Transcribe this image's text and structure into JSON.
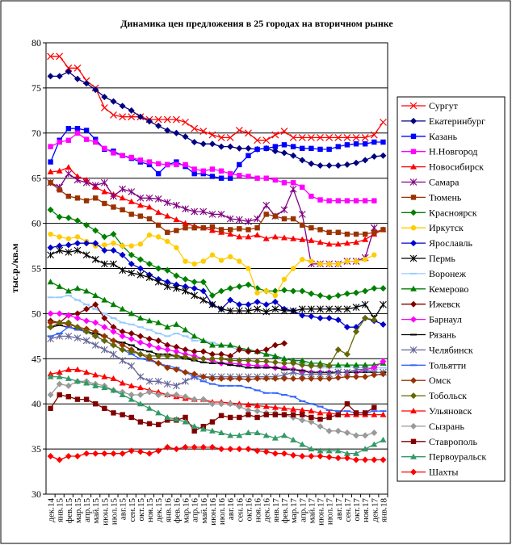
{
  "chart_data": {
    "type": "line",
    "title": "Динамика цен предложения в 25 городах на вторичном рынке",
    "y_label": "тыс.р./кв.м",
    "categories": [
      "дек.14",
      "янв.15",
      "фев.15",
      "мар.15",
      "апр.15",
      "май.15",
      "июн.15",
      "июл.15",
      "авг.15",
      "сен.15",
      "окт.15",
      "ноя.15",
      "дек.15",
      "янв.16",
      "фев.16",
      "мар.16",
      "апр.16",
      "май.16",
      "июн.16",
      "июл.16",
      "авг.16",
      "сен.16",
      "окт.16",
      "ноя.16",
      "дек.16",
      "янв.17",
      "фев.17",
      "мар.17",
      "апр.17",
      "май.17",
      "июн.17",
      "июл.17",
      "авг.17",
      "сен.17",
      "окт.17",
      "ноя.17",
      "дек.17",
      "янв.18"
    ],
    "ylim": [
      30,
      80
    ],
    "yticks": [
      30,
      35,
      40,
      45,
      50,
      55,
      60,
      65,
      70,
      75,
      80
    ],
    "grid": true,
    "legend": "right",
    "series": [
      {
        "name": "Сургут",
        "color": "#ff0000",
        "marker": "x",
        "values": [
          78.5,
          78.5,
          77.2,
          77.2,
          75.8,
          75,
          72.8,
          72,
          71.8,
          71.8,
          71.8,
          71.5,
          71.5,
          71.5,
          71.5,
          71.2,
          70.5,
          70.2,
          69.8,
          69.5,
          69.5,
          70.3,
          70,
          69.2,
          69.2,
          69.8,
          70.2,
          69.5,
          69.5,
          69.5,
          69.5,
          69.5,
          69.5,
          69.5,
          69.5,
          69.5,
          69.8,
          71.2
        ]
      },
      {
        "name": "Екатеринбург",
        "color": "#000080",
        "marker": "diamond",
        "values": [
          76.3,
          76.3,
          76.8,
          76,
          75.5,
          74.8,
          74,
          73.5,
          73,
          72.5,
          71.8,
          71.3,
          70.8,
          70.3,
          70,
          69.6,
          69,
          68.8,
          68.8,
          68.5,
          68.5,
          68.3,
          68.3,
          68.2,
          68.3,
          68,
          67.8,
          67.5,
          67,
          66.6,
          66.4,
          66.4,
          66.4,
          66.5,
          66.7,
          67,
          67.4,
          67.5
        ]
      },
      {
        "name": "Казань",
        "color": "#0000ff",
        "marker": "square",
        "values": [
          66.8,
          69.2,
          70.5,
          70.5,
          70.3,
          69.3,
          68.2,
          68,
          67.5,
          67.2,
          66.8,
          66.5,
          65.5,
          66.5,
          66.8,
          66.3,
          65.5,
          65.5,
          65.2,
          65,
          65,
          66.5,
          67.5,
          68.2,
          68.3,
          68.5,
          68.7,
          68.5,
          68.3,
          68.3,
          68.2,
          68.2,
          68.5,
          68.7,
          68.8,
          68.8,
          69,
          69
        ]
      },
      {
        "name": "Н.Новгород",
        "color": "#ff00ff",
        "marker": "square",
        "values": [
          68.5,
          69,
          69.2,
          70,
          69.3,
          69,
          68.3,
          67.8,
          67.5,
          67.3,
          67,
          66.8,
          66.6,
          66.5,
          66.5,
          66.5,
          66,
          65.8,
          66,
          65.8,
          65.5,
          65.3,
          65.2,
          65,
          65,
          64.8,
          64.5,
          64.5,
          64,
          63,
          62.6,
          62.5,
          62.5,
          62.5,
          62.5,
          62.5,
          62.5,
          null
        ]
      },
      {
        "name": "Новосибирск",
        "color": "#ff0000",
        "marker": "triangle",
        "values": [
          65.7,
          65.8,
          66.2,
          65.2,
          64.8,
          64,
          63.5,
          63.2,
          62.8,
          62.4,
          62,
          61.8,
          61.2,
          60.8,
          60.4,
          60,
          59.7,
          59.5,
          59.2,
          59,
          58.8,
          58.5,
          58.5,
          58.7,
          58.3,
          58.5,
          58.4,
          58.3,
          58.2,
          58.1,
          57.9,
          57.7,
          57.7,
          57.8,
          57.9,
          58.2,
          58.8,
          59.3
        ]
      },
      {
        "name": "Самара",
        "color": "#800080",
        "marker": "star",
        "values": [
          64.5,
          64,
          65.5,
          64.8,
          64.5,
          64.2,
          64.5,
          63,
          63.8,
          63.5,
          62.8,
          62.8,
          62.7,
          62.3,
          62,
          61.6,
          61.3,
          61.3,
          61,
          61,
          60.5,
          60.4,
          60.2,
          60.5,
          62,
          60.8,
          61.5,
          63.8,
          61,
          55.5,
          55.5,
          55.5,
          55.5,
          55.8,
          55.8,
          56.2,
          59.5,
          null
        ]
      },
      {
        "name": "Тюмень",
        "color": "#993300",
        "marker": "square",
        "values": [
          64.5,
          63.7,
          63,
          62.8,
          62.5,
          62.8,
          62.2,
          61.8,
          61.5,
          61,
          60.8,
          60.5,
          59.8,
          59,
          59.2,
          59.5,
          59.5,
          59.5,
          59.6,
          59.3,
          59.3,
          59.4,
          59.3,
          59.5,
          61,
          60.8,
          60.5,
          60.5,
          59.8,
          59.5,
          59.3,
          59,
          59,
          58.8,
          58.8,
          58.8,
          59,
          59.3
        ]
      },
      {
        "name": "Красноярск",
        "color": "#008000",
        "marker": "diamond",
        "values": [
          61.5,
          60.7,
          60.6,
          60.3,
          59.8,
          59.2,
          58.5,
          58.8,
          57.5,
          56.5,
          56,
          55.5,
          55,
          54.8,
          54.2,
          53.8,
          53.5,
          53.5,
          52,
          52.5,
          52.8,
          53,
          53.2,
          52.8,
          52.5,
          52.5,
          52.6,
          52.5,
          52.5,
          52.2,
          52,
          51.8,
          52,
          52.2,
          52.3,
          52.5,
          52.8,
          52.8
        ]
      },
      {
        "name": "Иркутск",
        "color": "#ffcc00",
        "marker": "circle",
        "values": [
          58.8,
          58.5,
          58.3,
          58.5,
          58,
          57.5,
          57.6,
          57.8,
          57.5,
          57.5,
          57.7,
          58.7,
          58.5,
          58,
          57.3,
          55.8,
          55.5,
          55.8,
          56.5,
          55.9,
          56.3,
          55.8,
          55,
          52.3,
          52.5,
          52,
          53.8,
          55,
          56,
          55.8,
          55.5,
          55.5,
          55.5,
          55.8,
          55.8,
          56,
          56.5,
          null
        ]
      },
      {
        "name": "Ярославль",
        "color": "#0000cc",
        "marker": "diamond",
        "values": [
          57.3,
          57.5,
          57.6,
          57.8,
          57.8,
          57.8,
          57,
          57,
          56.5,
          55.5,
          55,
          54.3,
          53.8,
          53.5,
          53.2,
          53,
          52.8,
          52.5,
          51,
          50.5,
          51.5,
          51,
          51,
          51.3,
          51,
          51.3,
          50.5,
          50.3,
          49.8,
          49.7,
          49.5,
          49.5,
          49.3,
          48.5,
          48.5,
          49.5,
          49.2,
          48.8
        ]
      },
      {
        "name": "Пермь",
        "color": "#000000",
        "marker": "star",
        "values": [
          56.5,
          57,
          56.8,
          57,
          56.5,
          56,
          55.5,
          55.5,
          54.8,
          54.5,
          54.3,
          54,
          53.5,
          53,
          52.8,
          52.5,
          52,
          51.5,
          51,
          50.5,
          50.3,
          50.3,
          50.3,
          50.5,
          50.2,
          50.5,
          50.3,
          50.3,
          50.5,
          50.5,
          50.5,
          50.5,
          50.5,
          50.5,
          50.7,
          51,
          49.5,
          51
        ]
      },
      {
        "name": "Воронеж",
        "color": "#99ccff",
        "marker": "dash",
        "values": [
          51.8,
          51.8,
          52,
          51.5,
          51,
          50.5,
          50,
          49.5,
          49,
          48.8,
          48.5,
          48.2,
          47.8,
          47.5,
          47.8,
          47.5,
          47,
          47,
          46.8,
          46.5,
          46.3,
          46,
          46,
          45.8,
          45.5,
          45.2,
          45,
          44.8,
          44.5,
          44.3,
          44,
          44,
          44,
          44.2,
          44,
          44,
          44,
          44
        ]
      },
      {
        "name": "Кемерово",
        "color": "#008000",
        "marker": "triangle",
        "values": [
          53.5,
          53,
          52.5,
          52.8,
          52.5,
          52,
          51.5,
          51,
          50.5,
          50,
          49.5,
          49.2,
          49,
          48.5,
          48.8,
          48.2,
          47.5,
          47,
          46.5,
          46.5,
          46.5,
          46.2,
          46,
          45.8,
          45.5,
          45.3,
          45,
          44.8,
          44.8,
          44.5,
          44.5,
          44.3,
          44.3,
          44.3,
          44.3,
          44.3,
          44.3,
          44.5
        ]
      },
      {
        "name": "Ижевск",
        "color": "#800000",
        "marker": "diamond",
        "values": [
          49.2,
          49,
          49.8,
          50,
          50.5,
          51,
          49.5,
          48.5,
          48,
          47.8,
          47.5,
          47.2,
          47,
          46.5,
          46.3,
          46,
          45.8,
          45.8,
          45.5,
          45.5,
          45.3,
          46,
          45.8,
          45.8,
          46,
          46.5,
          46.7,
          null,
          null,
          null,
          null,
          null,
          null,
          null,
          null,
          null,
          null,
          null
        ]
      },
      {
        "name": "Барнаул",
        "color": "#ff00ff",
        "marker": "diamond",
        "values": [
          50,
          50,
          49.8,
          49.5,
          49.2,
          49,
          48.5,
          48,
          47.5,
          47.2,
          46.8,
          46.5,
          46.2,
          46,
          45.8,
          45.5,
          45.3,
          45,
          44.8,
          44.5,
          44.5,
          44.4,
          44.3,
          44.2,
          44.2,
          44,
          44,
          43.8,
          43.6,
          43.5,
          43.5,
          43.5,
          43.5,
          43.5,
          43.5,
          43.8,
          44,
          44.7
        ]
      },
      {
        "name": "Рязань",
        "color": "#000000",
        "marker": "dash",
        "values": [
          48.5,
          48.7,
          48.5,
          48.3,
          48,
          47.8,
          47.5,
          47,
          46.8,
          46.5,
          46,
          45.8,
          45.5,
          45.5,
          45.3,
          45,
          44.8,
          44.6,
          44.5,
          44.5,
          44.3,
          44.2,
          44,
          44,
          44,
          44,
          43.8,
          43.8,
          43.7,
          43.5,
          43.5,
          43.5,
          43.5,
          43.5,
          43.5,
          43.5,
          43.5,
          43.5
        ]
      },
      {
        "name": "Челябинск",
        "color": "#666699",
        "marker": "star",
        "values": [
          47.2,
          47.5,
          47.5,
          47.3,
          47,
          46.5,
          46,
          45.5,
          44.8,
          44.2,
          43,
          42.5,
          42.5,
          42.2,
          42,
          42.5,
          43,
          43,
          43,
          43,
          43,
          43,
          43,
          43,
          43,
          43,
          43.2,
          43.5,
          43.2,
          43.3,
          43.3,
          43.3,
          43.5,
          43.5,
          43.8,
          43.8,
          43.5,
          43.5
        ]
      },
      {
        "name": "Тольятти",
        "color": "#3366ff",
        "marker": "dash",
        "values": [
          47.5,
          47.8,
          48.5,
          48.2,
          48,
          47.5,
          47,
          46.5,
          46,
          45.5,
          45,
          44.8,
          44.5,
          44.2,
          44,
          43.5,
          43,
          42.5,
          42.2,
          42,
          42,
          42,
          41.8,
          41.5,
          41.2,
          41.2,
          41,
          40.8,
          40.3,
          40,
          39.7,
          39.3,
          39.2,
          39.2,
          39,
          39,
          39.2,
          39.2
        ]
      },
      {
        "name": "Омск",
        "color": "#993300",
        "marker": "diamond",
        "values": [
          49,
          49,
          48.8,
          48.5,
          48.3,
          48,
          47.5,
          47,
          46.5,
          46,
          45.5,
          45,
          44.5,
          44,
          43.8,
          43.5,
          43.3,
          43,
          42.8,
          42.8,
          42.8,
          42.8,
          42.7,
          42.8,
          42.8,
          42.8,
          42.8,
          42.8,
          42.8,
          42.8,
          42.8,
          42.8,
          42.9,
          43,
          43,
          43,
          43.2,
          43.3
        ]
      },
      {
        "name": "Тобольск",
        "color": "#666600",
        "marker": "diamond",
        "values": [
          48.5,
          49,
          49,
          48.5,
          48,
          47.5,
          47,
          46.5,
          46,
          45.8,
          45.5,
          45.3,
          45.3,
          45.3,
          45.3,
          45.2,
          45,
          45,
          45,
          45,
          44.8,
          44.8,
          44.8,
          44.7,
          44.7,
          44.6,
          44.5,
          44.5,
          44.3,
          44.2,
          44.2,
          44.2,
          46,
          45.5,
          48,
          49.5,
          49.3,
          null
        ]
      },
      {
        "name": "Ульяновск",
        "color": "#ff0000",
        "marker": "triangle",
        "values": [
          43.3,
          43.5,
          43.8,
          43.8,
          43.5,
          43.2,
          43,
          42.8,
          42.3,
          42,
          41.8,
          41.5,
          41.3,
          41,
          40.8,
          40.6,
          40.5,
          40.5,
          40.2,
          40.2,
          40.1,
          40,
          39.9,
          39.8,
          39.7,
          39.6,
          39.5,
          39.4,
          39.3,
          39.2,
          39,
          39,
          38.8,
          38.8,
          38.8,
          38.8,
          38.8,
          38.8
        ]
      },
      {
        "name": "Сызрань",
        "color": "#999999",
        "marker": "diamond",
        "values": [
          41,
          42.2,
          42,
          42.5,
          42.5,
          42.2,
          42,
          41.5,
          41.3,
          41,
          41,
          41.3,
          41,
          41,
          41,
          40.8,
          40.5,
          40.5,
          40,
          40,
          40,
          39.7,
          39.3,
          39.2,
          39,
          39,
          38.8,
          38.5,
          38.2,
          38,
          37.5,
          37,
          37,
          36.8,
          36.5,
          36.5,
          36.8,
          null
        ]
      },
      {
        "name": "Ставрополь",
        "color": "#800000",
        "marker": "square",
        "values": [
          39.5,
          41,
          40.8,
          40.5,
          40.5,
          40,
          39.5,
          39,
          38.8,
          38.5,
          38,
          37.8,
          37.7,
          38.2,
          38.2,
          38.5,
          37,
          37.5,
          38,
          38.7,
          38.5,
          38.5,
          38.8,
          38.5,
          38.8,
          38.8,
          38.8,
          38.8,
          38.8,
          38.5,
          38.3,
          38.5,
          38.8,
          40,
          39,
          39,
          39.6,
          null
        ]
      },
      {
        "name": "Первоуральск",
        "color": "#339966",
        "marker": "triangle",
        "values": [
          43,
          43,
          42.8,
          42.5,
          42.3,
          42,
          41.8,
          41.5,
          41,
          40.5,
          40,
          39.5,
          39,
          38.5,
          38.3,
          38,
          37.5,
          37.2,
          37,
          36.8,
          36.5,
          36.5,
          36.8,
          36.8,
          36.5,
          36.2,
          36.5,
          36,
          35.5,
          35,
          34.8,
          34.8,
          34.8,
          34.5,
          34.5,
          35,
          35.5,
          36
        ]
      },
      {
        "name": "Шахты",
        "color": "#ff0000",
        "marker": "diamond",
        "values": [
          34.2,
          33.8,
          34.2,
          34.2,
          34.5,
          34.5,
          34.5,
          34.5,
          34.5,
          34.8,
          34.7,
          34.5,
          34.8,
          35.2,
          35,
          35.2,
          35.2,
          35.2,
          35.2,
          35,
          35,
          35,
          35,
          34.8,
          34.7,
          34.5,
          34.5,
          34.3,
          34.2,
          34.2,
          34.2,
          34.1,
          34,
          34,
          33.8,
          33.8,
          33.8,
          33.8
        ]
      }
    ]
  }
}
